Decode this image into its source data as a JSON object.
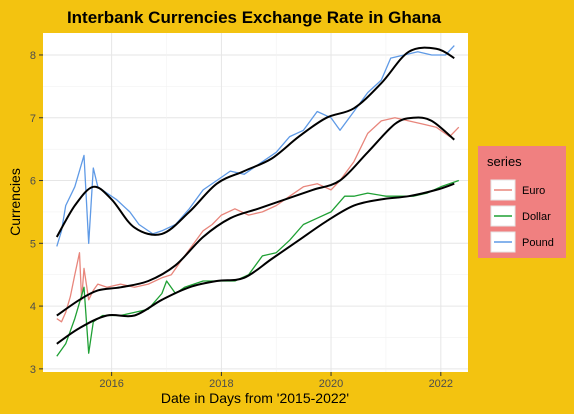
{
  "chart_data": {
    "type": "line",
    "title": "Interbank Currencies Exchange Rate in Ghana",
    "xlabel": "Date in Days from '2015-2022'",
    "ylabel": "Currencies",
    "xlim": [
      "2014-10-01",
      "2022-07-01"
    ],
    "ylim": [
      2.95,
      8.35
    ],
    "x_ticks": [
      {
        "value": "2016-01-01",
        "label": "2016"
      },
      {
        "value": "2018-01-01",
        "label": "2018"
      },
      {
        "value": "2020-01-01",
        "label": "2020"
      },
      {
        "value": "2022-01-01",
        "label": "2022"
      }
    ],
    "y_ticks": [
      3,
      4,
      5,
      6,
      7,
      8
    ],
    "grid": true,
    "legend": {
      "title": "series",
      "position": "right",
      "background": "#f08080"
    },
    "series": [
      {
        "name": "Euro",
        "color": "#e8867c",
        "points": [
          [
            "2015-01-01",
            3.8
          ],
          [
            "2015-02-01",
            3.75
          ],
          [
            "2015-03-01",
            3.9
          ],
          [
            "2015-04-01",
            4.15
          ],
          [
            "2015-05-01",
            4.5
          ],
          [
            "2015-06-01",
            4.85
          ],
          [
            "2015-06-15",
            4.1
          ],
          [
            "2015-07-01",
            4.6
          ],
          [
            "2015-08-01",
            4.1
          ],
          [
            "2015-09-01",
            4.25
          ],
          [
            "2015-10-01",
            4.35
          ],
          [
            "2015-12-01",
            4.3
          ],
          [
            "2016-03-01",
            4.35
          ],
          [
            "2016-06-01",
            4.3
          ],
          [
            "2016-09-01",
            4.35
          ],
          [
            "2016-12-01",
            4.45
          ],
          [
            "2017-02-01",
            4.5
          ],
          [
            "2017-04-01",
            4.7
          ],
          [
            "2017-06-01",
            4.9
          ],
          [
            "2017-09-01",
            5.2
          ],
          [
            "2017-11-01",
            5.3
          ],
          [
            "2018-01-01",
            5.45
          ],
          [
            "2018-04-01",
            5.55
          ],
          [
            "2018-07-01",
            5.45
          ],
          [
            "2018-10-01",
            5.5
          ],
          [
            "2019-01-01",
            5.6
          ],
          [
            "2019-04-01",
            5.75
          ],
          [
            "2019-07-01",
            5.9
          ],
          [
            "2019-10-01",
            5.95
          ],
          [
            "2020-01-01",
            5.85
          ],
          [
            "2020-03-01",
            6.0
          ],
          [
            "2020-06-01",
            6.3
          ],
          [
            "2020-09-01",
            6.75
          ],
          [
            "2020-12-01",
            6.95
          ],
          [
            "2021-03-01",
            7.0
          ],
          [
            "2021-06-01",
            6.95
          ],
          [
            "2021-09-01",
            6.9
          ],
          [
            "2021-12-01",
            6.85
          ],
          [
            "2022-03-01",
            6.7
          ],
          [
            "2022-05-01",
            6.85
          ]
        ]
      },
      {
        "name": "Dollar",
        "color": "#1fa034",
        "points": [
          [
            "2015-01-01",
            3.2
          ],
          [
            "2015-03-01",
            3.4
          ],
          [
            "2015-05-01",
            3.8
          ],
          [
            "2015-07-01",
            4.3
          ],
          [
            "2015-08-01",
            3.25
          ],
          [
            "2015-09-01",
            3.75
          ],
          [
            "2015-11-01",
            3.85
          ],
          [
            "2016-03-01",
            3.85
          ],
          [
            "2016-06-01",
            3.9
          ],
          [
            "2016-09-01",
            3.95
          ],
          [
            "2016-12-01",
            4.2
          ],
          [
            "2017-01-01",
            4.4
          ],
          [
            "2017-03-01",
            4.2
          ],
          [
            "2017-05-01",
            4.3
          ],
          [
            "2017-09-01",
            4.4
          ],
          [
            "2018-01-01",
            4.4
          ],
          [
            "2018-04-01",
            4.4
          ],
          [
            "2018-07-01",
            4.5
          ],
          [
            "2018-10-01",
            4.8
          ],
          [
            "2019-01-01",
            4.85
          ],
          [
            "2019-04-01",
            5.05
          ],
          [
            "2019-07-01",
            5.3
          ],
          [
            "2019-10-01",
            5.4
          ],
          [
            "2020-01-01",
            5.5
          ],
          [
            "2020-04-01",
            5.75
          ],
          [
            "2020-06-01",
            5.75
          ],
          [
            "2020-09-01",
            5.8
          ],
          [
            "2021-01-01",
            5.75
          ],
          [
            "2021-04-01",
            5.75
          ],
          [
            "2021-07-01",
            5.75
          ],
          [
            "2021-10-01",
            5.8
          ],
          [
            "2022-01-01",
            5.9
          ],
          [
            "2022-05-01",
            6.0
          ]
        ]
      },
      {
        "name": "Pound",
        "color": "#5f9ae6",
        "points": [
          [
            "2015-01-01",
            4.95
          ],
          [
            "2015-02-01",
            5.2
          ],
          [
            "2015-03-01",
            5.6
          ],
          [
            "2015-05-01",
            5.9
          ],
          [
            "2015-07-01",
            6.4
          ],
          [
            "2015-08-01",
            5.0
          ],
          [
            "2015-09-01",
            6.2
          ],
          [
            "2015-10-01",
            5.9
          ],
          [
            "2015-12-01",
            5.8
          ],
          [
            "2016-02-01",
            5.7
          ],
          [
            "2016-05-01",
            5.5
          ],
          [
            "2016-07-01",
            5.3
          ],
          [
            "2016-10-01",
            5.15
          ],
          [
            "2016-12-01",
            5.2
          ],
          [
            "2017-03-01",
            5.3
          ],
          [
            "2017-06-01",
            5.55
          ],
          [
            "2017-09-01",
            5.85
          ],
          [
            "2017-12-01",
            6.0
          ],
          [
            "2018-03-01",
            6.15
          ],
          [
            "2018-06-01",
            6.1
          ],
          [
            "2018-09-01",
            6.25
          ],
          [
            "2019-01-01",
            6.45
          ],
          [
            "2019-04-01",
            6.7
          ],
          [
            "2019-07-01",
            6.8
          ],
          [
            "2019-10-01",
            7.1
          ],
          [
            "2020-01-01",
            7.0
          ],
          [
            "2020-03-01",
            6.8
          ],
          [
            "2020-06-01",
            7.1
          ],
          [
            "2020-09-01",
            7.4
          ],
          [
            "2020-12-01",
            7.6
          ],
          [
            "2021-02-01",
            7.95
          ],
          [
            "2021-05-01",
            8.0
          ],
          [
            "2021-08-01",
            8.05
          ],
          [
            "2021-11-01",
            8.0
          ],
          [
            "2022-02-01",
            8.0
          ],
          [
            "2022-04-01",
            8.15
          ]
        ]
      }
    ],
    "smooth_lines": {
      "color": "#000000",
      "curves": [
        {
          "for": "Euro",
          "points": [
            [
              "2015-01-01",
              3.85
            ],
            [
              "2015-06-01",
              4.1
            ],
            [
              "2015-10-01",
              4.25
            ],
            [
              "2016-03-01",
              4.3
            ],
            [
              "2016-09-01",
              4.4
            ],
            [
              "2017-03-01",
              4.65
            ],
            [
              "2017-09-01",
              5.1
            ],
            [
              "2018-03-01",
              5.4
            ],
            [
              "2018-09-01",
              5.55
            ],
            [
              "2019-03-01",
              5.7
            ],
            [
              "2019-09-01",
              5.85
            ],
            [
              "2020-03-01",
              6.0
            ],
            [
              "2020-09-01",
              6.45
            ],
            [
              "2021-03-01",
              6.9
            ],
            [
              "2021-07-01",
              7.0
            ],
            [
              "2021-11-01",
              6.95
            ],
            [
              "2022-04-01",
              6.65
            ]
          ]
        },
        {
          "for": "Dollar",
          "points": [
            [
              "2015-01-01",
              3.4
            ],
            [
              "2015-06-01",
              3.65
            ],
            [
              "2015-12-01",
              3.85
            ],
            [
              "2016-06-01",
              3.85
            ],
            [
              "2016-12-01",
              4.1
            ],
            [
              "2017-06-01",
              4.3
            ],
            [
              "2017-12-01",
              4.4
            ],
            [
              "2018-06-01",
              4.45
            ],
            [
              "2018-12-01",
              4.75
            ],
            [
              "2019-06-01",
              5.05
            ],
            [
              "2019-12-01",
              5.35
            ],
            [
              "2020-06-01",
              5.6
            ],
            [
              "2020-12-01",
              5.7
            ],
            [
              "2021-06-01",
              5.75
            ],
            [
              "2021-12-01",
              5.85
            ],
            [
              "2022-04-01",
              5.95
            ]
          ]
        },
        {
          "for": "Pound",
          "points": [
            [
              "2015-01-01",
              5.1
            ],
            [
              "2015-05-01",
              5.6
            ],
            [
              "2015-09-01",
              5.9
            ],
            [
              "2016-01-01",
              5.7
            ],
            [
              "2016-06-01",
              5.25
            ],
            [
              "2016-12-01",
              5.15
            ],
            [
              "2017-06-01",
              5.5
            ],
            [
              "2017-12-01",
              5.95
            ],
            [
              "2018-06-01",
              6.15
            ],
            [
              "2018-12-01",
              6.35
            ],
            [
              "2019-06-01",
              6.7
            ],
            [
              "2019-12-01",
              7.0
            ],
            [
              "2020-06-01",
              7.15
            ],
            [
              "2020-12-01",
              7.55
            ],
            [
              "2021-06-01",
              8.05
            ],
            [
              "2021-12-01",
              8.1
            ],
            [
              "2022-04-01",
              7.95
            ]
          ]
        }
      ]
    }
  }
}
